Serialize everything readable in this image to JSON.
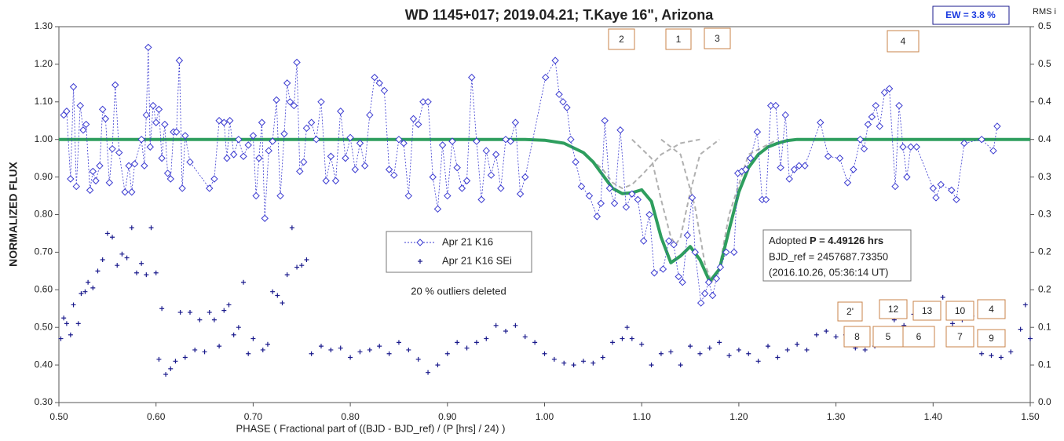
{
  "chart_data": {
    "type": "scatter",
    "title": "WD 1145+017; 2019.04.21; T.Kaye 16\", Arizona",
    "x_label": "PHASE ( Fractional part of ((BJD - BJD_ref) / (P [hrs] / 24) )",
    "y_label": "NORMALIZED FLUX",
    "y2_label": "RMS i",
    "ew_label": "EW =  3.8 %",
    "outlier_note": "20 % outliers deleted",
    "info": {
      "prefix": "Adopted ",
      "period": "P = 4.49126 hrs",
      "bjd_ref": "BJD_ref = 2457687.73350",
      "date": "(2016.10.26, 05:36:14 UT)"
    },
    "dip_labels_top": [
      "2",
      "1",
      "3",
      "4"
    ],
    "dip_labels_bottom": [
      "2'",
      "12",
      "13",
      "10",
      "4",
      "8",
      "5",
      "6",
      "7",
      "9"
    ],
    "xlim": [
      0.5,
      1.5
    ],
    "xticks": [
      {
        "value": 0.5,
        "label": "0.50"
      },
      {
        "value": 0.6,
        "label": "0.60"
      },
      {
        "value": 0.7,
        "label": "0.70"
      },
      {
        "value": 0.8,
        "label": "0.80"
      },
      {
        "value": 0.9,
        "label": "0.90"
      },
      {
        "value": 1.0,
        "label": "1.00"
      },
      {
        "value": 1.1,
        "label": "1.10"
      },
      {
        "value": 1.2,
        "label": "1.20"
      },
      {
        "value": 1.3,
        "label": "1.30"
      },
      {
        "value": 1.4,
        "label": "1.40"
      },
      {
        "value": 1.5,
        "label": "1.50"
      }
    ],
    "ylim": [
      0.3,
      1.3
    ],
    "yticks": [
      {
        "value": 0.3,
        "label": "0.30"
      },
      {
        "value": 0.4,
        "label": "0.40"
      },
      {
        "value": 0.5,
        "label": "0.50"
      },
      {
        "value": 0.6,
        "label": "0.60"
      },
      {
        "value": 0.7,
        "label": "0.70"
      },
      {
        "value": 0.8,
        "label": "0.80"
      },
      {
        "value": 0.9,
        "label": "0.90"
      },
      {
        "value": 1.0,
        "label": "1.00"
      },
      {
        "value": 1.1,
        "label": "1.10"
      },
      {
        "value": 1.2,
        "label": "1.20"
      },
      {
        "value": 1.3,
        "label": "1.30"
      }
    ],
    "y2lim": [
      0,
      0.5
    ],
    "y2ticks": [
      {
        "value": 0,
        "label": "0.0"
      },
      {
        "value": 0.05,
        "label": "0.1"
      },
      {
        "value": 0.1,
        "label": "0.1"
      },
      {
        "value": 0.15,
        "label": "0.2"
      },
      {
        "value": 0.2,
        "label": "0.2"
      },
      {
        "value": 0.25,
        "label": "0.3"
      },
      {
        "value": 0.3,
        "label": "0.3"
      },
      {
        "value": 0.35,
        "label": "0.4"
      },
      {
        "value": 0.4,
        "label": "0.4"
      },
      {
        "value": 0.45,
        "label": "0.5"
      },
      {
        "value": 0.5,
        "label": "0.5"
      }
    ],
    "series": [
      {
        "name": "Apr 21 K16",
        "color": "#3a3ad0",
        "marker": "diamond",
        "x": [
          0.505,
          0.508,
          0.512,
          0.515,
          0.518,
          0.522,
          0.525,
          0.528,
          0.532,
          0.535,
          0.538,
          0.542,
          0.545,
          0.548,
          0.552,
          0.555,
          0.558,
          0.562,
          0.568,
          0.572,
          0.575,
          0.578,
          0.585,
          0.588,
          0.59,
          0.592,
          0.594,
          0.597,
          0.6,
          0.603,
          0.606,
          0.609,
          0.612,
          0.615,
          0.618,
          0.621,
          0.624,
          0.627,
          0.63,
          0.635,
          0.655,
          0.66,
          0.665,
          0.67,
          0.673,
          0.676,
          0.68,
          0.685,
          0.69,
          0.695,
          0.7,
          0.703,
          0.706,
          0.709,
          0.712,
          0.716,
          0.72,
          0.724,
          0.728,
          0.732,
          0.735,
          0.738,
          0.742,
          0.745,
          0.748,
          0.752,
          0.755,
          0.76,
          0.765,
          0.77,
          0.775,
          0.78,
          0.785,
          0.79,
          0.795,
          0.8,
          0.805,
          0.81,
          0.815,
          0.82,
          0.825,
          0.83,
          0.835,
          0.84,
          0.845,
          0.85,
          0.855,
          0.86,
          0.865,
          0.87,
          0.875,
          0.88,
          0.885,
          0.89,
          0.895,
          0.9,
          0.905,
          0.91,
          0.915,
          0.92,
          0.925,
          0.93,
          0.935,
          0.94,
          0.945,
          0.95,
          0.955,
          0.96,
          0.965,
          0.97,
          0.975,
          0.98,
          1.001,
          1.011,
          1.015,
          1.019,
          1.023,
          1.027,
          1.032,
          1.038,
          1.046,
          1.054,
          1.058,
          1.062,
          1.067,
          1.072,
          1.078,
          1.084,
          1.09,
          1.096,
          1.102,
          1.108,
          1.113,
          1.122,
          1.128,
          1.133,
          1.138,
          1.142,
          1.147,
          1.152,
          1.155,
          1.161,
          1.165,
          1.169,
          1.173,
          1.177,
          1.181,
          1.187,
          1.195,
          1.199,
          1.203,
          1.207,
          1.212,
          1.219,
          1.224,
          1.228,
          1.233,
          1.238,
          1.243,
          1.248,
          1.252,
          1.257,
          1.262,
          1.268,
          1.284,
          1.292,
          1.304,
          1.312,
          1.318,
          1.325,
          1.329,
          1.333,
          1.337,
          1.341,
          1.345,
          1.35,
          1.355,
          1.361,
          1.365,
          1.369,
          1.373,
          1.377,
          1.383,
          1.4,
          1.403,
          1.408,
          1.419,
          1.424,
          1.432,
          1.45,
          1.462,
          1.466
        ],
        "values": [
          1.065,
          1.075,
          0.895,
          1.14,
          0.875,
          1.09,
          1.025,
          1.04,
          0.865,
          0.915,
          0.89,
          0.93,
          1.08,
          1.055,
          0.885,
          0.975,
          1.145,
          0.965,
          0.86,
          0.93,
          0.86,
          0.935,
          1.0,
          0.93,
          1.065,
          1.245,
          0.98,
          1.09,
          1.045,
          1.08,
          0.95,
          1.04,
          0.91,
          0.895,
          1.02,
          1.02,
          1.21,
          0.87,
          1.01,
          0.94,
          0.87,
          0.895,
          1.05,
          1.045,
          0.95,
          1.05,
          0.96,
          1.0,
          0.955,
          0.985,
          1.01,
          0.85,
          0.95,
          1.045,
          0.79,
          0.97,
          0.995,
          1.105,
          0.85,
          1.015,
          1.15,
          1.1,
          1.09,
          1.205,
          0.915,
          0.94,
          1.03,
          1.045,
          1.0,
          1.1,
          0.89,
          0.955,
          0.89,
          1.075,
          0.95,
          1.005,
          0.92,
          0.99,
          0.93,
          1.065,
          1.165,
          1.15,
          1.13,
          0.92,
          0.905,
          1.0,
          0.99,
          0.85,
          1.055,
          1.04,
          1.1,
          1.1,
          0.9,
          0.815,
          0.985,
          0.85,
          0.995,
          0.925,
          0.87,
          0.89,
          1.165,
          0.995,
          0.84,
          0.97,
          0.905,
          0.96,
          0.87,
          1.0,
          0.995,
          1.045,
          0.855,
          0.9,
          1.165,
          1.21,
          1.12,
          1.1,
          1.085,
          1.0,
          0.94,
          0.875,
          0.85,
          0.795,
          0.83,
          1.05,
          0.87,
          0.83,
          1.025,
          0.82,
          0.855,
          0.84,
          0.73,
          0.8,
          0.645,
          0.655,
          0.73,
          0.72,
          0.635,
          0.62,
          0.745,
          0.845,
          0.7,
          0.565,
          0.59,
          0.62,
          0.585,
          0.63,
          0.66,
          0.7,
          0.7,
          0.91,
          0.915,
          0.92,
          0.95,
          1.02,
          0.84,
          0.84,
          1.09,
          1.09,
          0.925,
          1.065,
          0.895,
          0.92,
          0.93,
          0.93,
          1.045,
          0.955,
          0.95,
          0.885,
          0.92,
          1.0,
          0.975,
          1.04,
          1.06,
          1.09,
          1.035,
          1.125,
          1.135,
          0.875,
          1.09,
          0.98,
          0.9,
          0.98,
          0.98,
          0.87,
          0.845,
          0.88,
          0.865,
          0.84,
          0.99,
          1.0,
          0.97,
          1.035
        ]
      },
      {
        "name": "Apr 21 K16 SEi",
        "color": "#1a1a8c",
        "marker": "plus",
        "x": [
          0.502,
          0.505,
          0.508,
          0.512,
          0.515,
          0.52,
          0.523,
          0.527,
          0.53,
          0.535,
          0.54,
          0.545,
          0.55,
          0.555,
          0.56,
          0.565,
          0.57,
          0.575,
          0.58,
          0.585,
          0.59,
          0.595,
          0.6,
          0.603,
          0.606,
          0.61,
          0.615,
          0.62,
          0.625,
          0.63,
          0.635,
          0.64,
          0.645,
          0.65,
          0.655,
          0.66,
          0.665,
          0.67,
          0.675,
          0.68,
          0.685,
          0.69,
          0.695,
          0.7,
          0.71,
          0.715,
          0.72,
          0.725,
          0.73,
          0.735,
          0.74,
          0.745,
          0.75,
          0.755,
          0.76,
          0.77,
          0.78,
          0.79,
          0.8,
          0.81,
          0.82,
          0.83,
          0.84,
          0.85,
          0.86,
          0.87,
          0.88,
          0.89,
          0.9,
          0.91,
          0.92,
          0.93,
          0.94,
          0.95,
          0.96,
          0.97,
          0.98,
          0.99,
          1.0,
          1.01,
          1.02,
          1.03,
          1.04,
          1.05,
          1.06,
          1.07,
          1.08,
          1.085,
          1.09,
          1.1,
          1.11,
          1.12,
          1.13,
          1.14,
          1.15,
          1.16,
          1.17,
          1.18,
          1.19,
          1.2,
          1.21,
          1.22,
          1.23,
          1.24,
          1.25,
          1.26,
          1.27,
          1.28,
          1.29,
          1.3,
          1.31,
          1.32,
          1.33,
          1.34,
          1.35,
          1.36,
          1.37,
          1.38,
          1.39,
          1.4,
          1.41,
          1.42,
          1.43,
          1.44,
          1.45,
          1.46,
          1.47,
          1.48,
          1.49,
          1.495,
          1.5
        ],
        "values": [
          0.47,
          0.525,
          0.51,
          0.48,
          0.56,
          0.51,
          0.59,
          0.595,
          0.62,
          0.605,
          0.65,
          0.68,
          0.75,
          0.74,
          0.665,
          0.695,
          0.685,
          0.765,
          0.645,
          0.67,
          0.64,
          0.765,
          0.645,
          0.415,
          0.55,
          0.375,
          0.39,
          0.41,
          0.54,
          0.42,
          0.54,
          0.44,
          0.52,
          0.435,
          0.54,
          0.52,
          0.45,
          0.545,
          0.56,
          0.48,
          0.5,
          0.62,
          0.43,
          0.47,
          0.44,
          0.455,
          0.595,
          0.585,
          0.565,
          0.64,
          0.765,
          0.66,
          0.665,
          0.68,
          0.43,
          0.45,
          0.44,
          0.445,
          0.42,
          0.435,
          0.44,
          0.45,
          0.43,
          0.46,
          0.44,
          0.415,
          0.38,
          0.4,
          0.43,
          0.46,
          0.445,
          0.46,
          0.47,
          0.505,
          0.49,
          0.505,
          0.475,
          0.46,
          0.43,
          0.415,
          0.405,
          0.4,
          0.41,
          0.405,
          0.42,
          0.46,
          0.47,
          0.5,
          0.47,
          0.455,
          0.4,
          0.43,
          0.435,
          0.4,
          0.45,
          0.43,
          0.445,
          0.46,
          0.425,
          0.44,
          0.43,
          0.41,
          0.45,
          0.42,
          0.44,
          0.455,
          0.44,
          0.48,
          0.49,
          0.475,
          0.48,
          0.445,
          0.44,
          0.45,
          0.48,
          0.52,
          0.505,
          0.535,
          0.545,
          0.55,
          0.58,
          0.51,
          0.52,
          0.53,
          0.43,
          0.425,
          0.42,
          0.435,
          0.495,
          0.56,
          0.47
        ]
      }
    ],
    "model_lines": [
      {
        "color": "#b0b0b0",
        "dashed": true,
        "x": [
          0.98,
          1.0,
          1.02,
          1.04,
          1.06,
          1.07,
          1.08,
          1.09,
          1.1,
          1.12,
          1.14,
          1.16
        ],
        "values": [
          1.0,
          0.998,
          0.99,
          0.965,
          0.92,
          0.885,
          0.87,
          0.88,
          0.905,
          0.96,
          0.99,
          1.0
        ]
      },
      {
        "color": "#b0b0b0",
        "dashed": true,
        "x": [
          1.09,
          1.11,
          1.12,
          1.13,
          1.135,
          1.14,
          1.15,
          1.16,
          1.18
        ],
        "values": [
          1.0,
          0.95,
          0.84,
          0.74,
          0.72,
          0.74,
          0.86,
          0.96,
          1.0
        ]
      },
      {
        "color": "#b0b0b0",
        "dashed": true,
        "x": [
          1.12,
          1.14,
          1.155,
          1.165,
          1.172,
          1.18,
          1.19,
          1.21,
          1.24
        ],
        "values": [
          1.0,
          0.96,
          0.82,
          0.67,
          0.62,
          0.66,
          0.8,
          0.96,
          1.0
        ]
      },
      {
        "color": "#2e9e5e",
        "dashed": false,
        "x": [
          0.5,
          0.98,
          1.0,
          1.02,
          1.04,
          1.05,
          1.06,
          1.07,
          1.08,
          1.09,
          1.1,
          1.11,
          1.12,
          1.13,
          1.14,
          1.15,
          1.16,
          1.17,
          1.18,
          1.19,
          1.2,
          1.21,
          1.22,
          1.23,
          1.24,
          1.25,
          1.26,
          1.5
        ],
        "values": [
          1.0,
          1.0,
          0.998,
          0.99,
          0.965,
          0.94,
          0.905,
          0.87,
          0.856,
          0.858,
          0.866,
          0.835,
          0.74,
          0.672,
          0.69,
          0.715,
          0.68,
          0.622,
          0.655,
          0.76,
          0.86,
          0.925,
          0.96,
          0.98,
          0.99,
          0.997,
          1.0,
          1.0
        ]
      }
    ]
  }
}
